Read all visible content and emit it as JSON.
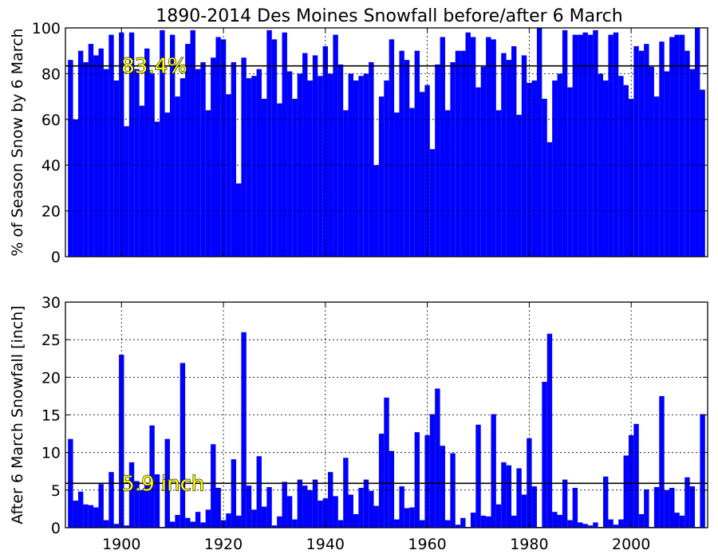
{
  "chart_data": [
    {
      "type": "bar",
      "title": "1890-2014 Des Moines Snowfall before/after 6 March",
      "ylabel": "% of Season Snow by 6 March",
      "xlabel": "",
      "xlim": [
        1889,
        2015
      ],
      "ylim": [
        0,
        100
      ],
      "yticks": [
        "0",
        "20",
        "40",
        "60",
        "80",
        "100"
      ],
      "xticks": [
        "1900",
        "1920",
        "1940",
        "1960",
        "1980",
        "2000"
      ],
      "grid": true,
      "bar_color": "#0000ff",
      "reference_line": 83.4,
      "annotation": "83.4%",
      "x": [
        1890,
        1891,
        1892,
        1893,
        1894,
        1895,
        1896,
        1897,
        1898,
        1899,
        1900,
        1901,
        1902,
        1903,
        1904,
        1905,
        1906,
        1907,
        1908,
        1909,
        1910,
        1911,
        1912,
        1913,
        1914,
        1915,
        1916,
        1917,
        1918,
        1919,
        1920,
        1921,
        1922,
        1923,
        1924,
        1925,
        1926,
        1927,
        1928,
        1929,
        1930,
        1931,
        1932,
        1933,
        1934,
        1935,
        1936,
        1937,
        1938,
        1939,
        1940,
        1941,
        1942,
        1943,
        1944,
        1945,
        1946,
        1947,
        1948,
        1949,
        1950,
        1951,
        1952,
        1953,
        1954,
        1955,
        1956,
        1957,
        1958,
        1959,
        1960,
        1961,
        1962,
        1963,
        1964,
        1965,
        1966,
        1967,
        1968,
        1969,
        1970,
        1971,
        1972,
        1973,
        1974,
        1975,
        1976,
        1977,
        1978,
        1979,
        1980,
        1981,
        1982,
        1983,
        1984,
        1985,
        1986,
        1987,
        1988,
        1989,
        1990,
        1991,
        1992,
        1993,
        1994,
        1995,
        1996,
        1997,
        1998,
        1999,
        2000,
        2001,
        2002,
        2003,
        2004,
        2005,
        2006,
        2007,
        2008,
        2009,
        2010,
        2011,
        2012,
        2013,
        2014
      ],
      "values": [
        86,
        60,
        90,
        85,
        93,
        88,
        91,
        82,
        97,
        77,
        98,
        57,
        98,
        82,
        66,
        91,
        80,
        59,
        99,
        63,
        97,
        70,
        78,
        93,
        99,
        82,
        85,
        64,
        87,
        96,
        95,
        71,
        85,
        32,
        87,
        78,
        79,
        82,
        69,
        99,
        95,
        67,
        98,
        81,
        69,
        80,
        89,
        77,
        88,
        79,
        92,
        80,
        97,
        84,
        64,
        80,
        77,
        79,
        80,
        85,
        40,
        70,
        77,
        95,
        63,
        90,
        86,
        65,
        90,
        72,
        75,
        47,
        84,
        96,
        64,
        85,
        90,
        90,
        98,
        96,
        74,
        83,
        96,
        95,
        64,
        89,
        86,
        92,
        62,
        88,
        76,
        77,
        100,
        69,
        50,
        77,
        80,
        99,
        74,
        97,
        97,
        98,
        97,
        99,
        80,
        77,
        97,
        98,
        79,
        75,
        69,
        92,
        90,
        93,
        83,
        70,
        94,
        81,
        96,
        97,
        97,
        90,
        82,
        100,
        73
      ]
    },
    {
      "type": "bar",
      "title": "",
      "ylabel": "After 6 March Snowfall [inch]",
      "xlabel": "",
      "xlim": [
        1889,
        2015
      ],
      "ylim": [
        0,
        30
      ],
      "yticks": [
        "0",
        "5",
        "10",
        "15",
        "20",
        "25",
        "30"
      ],
      "xticks": [
        "1900",
        "1920",
        "1940",
        "1960",
        "1980",
        "2000"
      ],
      "grid": true,
      "bar_color": "#0000ff",
      "reference_line": 5.9,
      "annotation": "5.9 inch",
      "x": [
        1890,
        1891,
        1892,
        1893,
        1894,
        1895,
        1896,
        1897,
        1898,
        1899,
        1900,
        1901,
        1902,
        1903,
        1904,
        1905,
        1906,
        1907,
        1908,
        1909,
        1910,
        1911,
        1912,
        1913,
        1914,
        1915,
        1916,
        1917,
        1918,
        1919,
        1920,
        1921,
        1922,
        1923,
        1924,
        1925,
        1926,
        1927,
        1928,
        1929,
        1930,
        1931,
        1932,
        1933,
        1934,
        1935,
        1936,
        1937,
        1938,
        1939,
        1940,
        1941,
        1942,
        1943,
        1944,
        1945,
        1946,
        1947,
        1948,
        1949,
        1950,
        1951,
        1952,
        1953,
        1954,
        1955,
        1956,
        1957,
        1958,
        1959,
        1960,
        1961,
        1962,
        1963,
        1964,
        1965,
        1966,
        1967,
        1968,
        1969,
        1970,
        1971,
        1972,
        1973,
        1974,
        1975,
        1976,
        1977,
        1978,
        1979,
        1980,
        1981,
        1982,
        1983,
        1984,
        1985,
        1986,
        1987,
        1988,
        1989,
        1990,
        1991,
        1992,
        1993,
        1994,
        1995,
        1996,
        1997,
        1998,
        1999,
        2000,
        2001,
        2002,
        2003,
        2004,
        2005,
        2006,
        2007,
        2008,
        2009,
        2010,
        2011,
        2012,
        2013,
        2014
      ],
      "values": [
        11.8,
        3.6,
        4.8,
        3.1,
        3.0,
        2.7,
        5.8,
        1.0,
        7.4,
        0.5,
        23.0,
        0.3,
        8.7,
        6.2,
        5.0,
        5.9,
        13.6,
        7.1,
        0.1,
        11.8,
        0.8,
        1.7,
        21.9,
        1.3,
        0.8,
        2.1,
        0.7,
        2.4,
        11.1,
        5.3,
        1.0,
        1.9,
        9.1,
        1.6,
        26.0,
        5.6,
        2.4,
        9.5,
        2.8,
        5.4,
        0.3,
        1.5,
        6.1,
        4.2,
        1.1,
        6.4,
        5.6,
        5.0,
        6.4,
        3.6,
        3.9,
        7.4,
        4.2,
        1.0,
        9.3,
        4.4,
        1.8,
        5.3,
        6.4,
        4.9,
        2.9,
        12.5,
        17.3,
        10.2,
        1.1,
        5.5,
        2.6,
        2.7,
        12.7,
        1.0,
        12.3,
        15.1,
        18.5,
        10.9,
        1.0,
        9.9,
        0.4,
        1.3,
        0.1,
        2.0,
        13.7,
        1.6,
        1.5,
        15.1,
        3.1,
        8.7,
        8.3,
        1.6,
        7.9,
        4.4,
        11.9,
        5.5,
        0.1,
        19.4,
        25.8,
        2.1,
        1.7,
        6.4,
        1.0,
        5.3,
        0.7,
        0.5,
        0.3,
        0.7,
        0.1,
        6.8,
        1.1,
        0.4,
        1.1,
        9.6,
        12.3,
        13.8,
        1.8,
        5.1,
        0.1,
        5.4,
        17.5,
        5.0,
        5.3,
        2.0,
        1.6,
        6.7,
        5.5,
        0.1,
        15.1
      ]
    }
  ]
}
